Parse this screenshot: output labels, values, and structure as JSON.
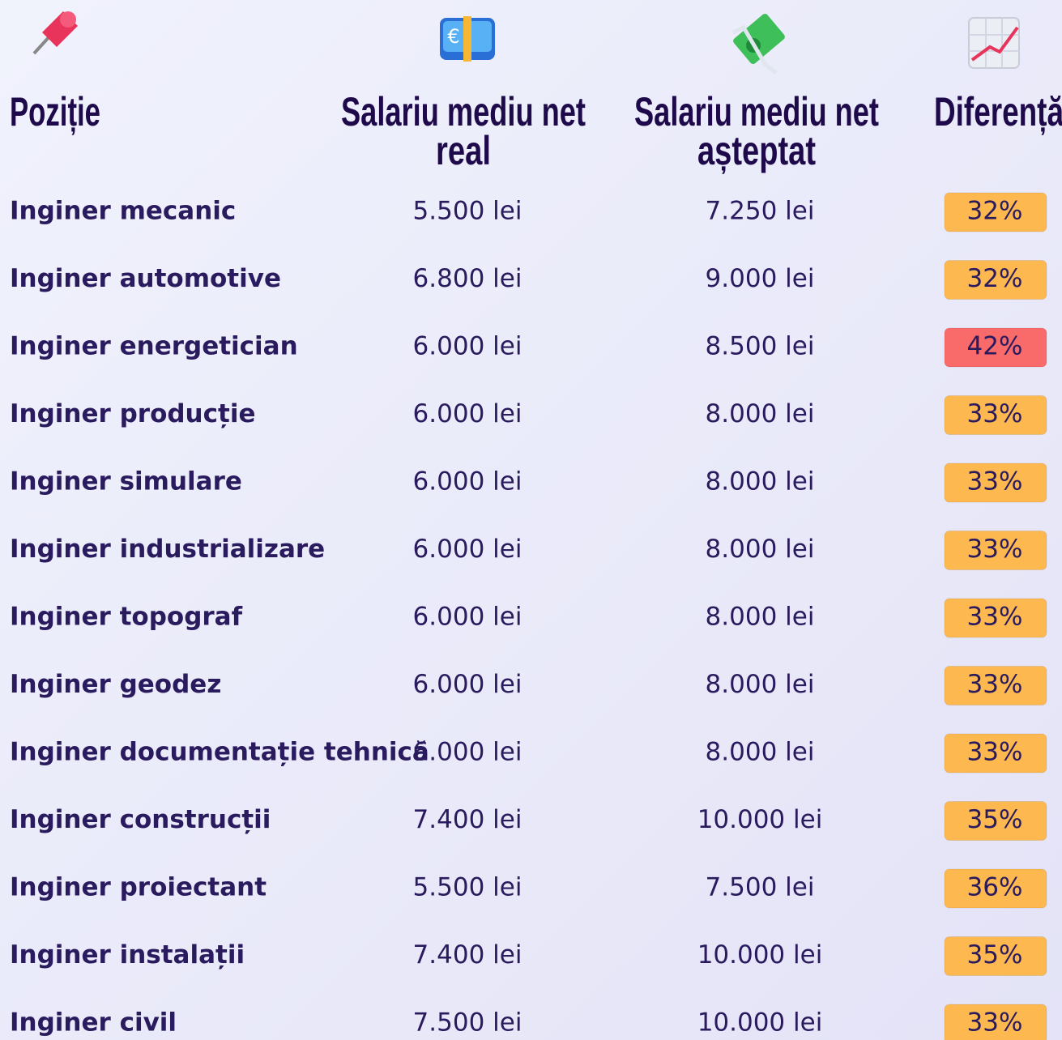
{
  "header": {
    "columns": [
      [
        "Poziție"
      ],
      [
        "Salariu mediu net",
        "real"
      ],
      [
        "Salariu mediu net",
        "așteptat"
      ],
      [
        "Diferență"
      ]
    ]
  },
  "table": {
    "rows": [
      {
        "position": "Inginer mecanic",
        "real": "5.500 lei",
        "expected": "7.250 lei",
        "difference": "32%",
        "color": "#fdb84f"
      },
      {
        "position": "Inginer automotive",
        "real": "6.800 lei",
        "expected": "9.000 lei",
        "difference": "32%",
        "color": "#fdb84f"
      },
      {
        "position": "Inginer energetician",
        "real": "6.000 lei",
        "expected": "8.500 lei",
        "difference": "42%",
        "color": "#f96a6a"
      },
      {
        "position": "Inginer producție",
        "real": "6.000 lei",
        "expected": "8.000 lei",
        "difference": "33%",
        "color": "#fdb84f"
      },
      {
        "position": "Inginer simulare",
        "real": "6.000 lei",
        "expected": "8.000 lei",
        "difference": "33%",
        "color": "#fdb84f"
      },
      {
        "position": "Inginer industrializare",
        "real": "6.000 lei",
        "expected": "8.000 lei",
        "difference": "33%",
        "color": "#fdb84f"
      },
      {
        "position": "Inginer topograf",
        "real": "6.000 lei",
        "expected": "8.000 lei",
        "difference": "33%",
        "color": "#fdb84f"
      },
      {
        "position": "Inginer geodez",
        "real": "6.000 lei",
        "expected": "8.000 lei",
        "difference": "33%",
        "color": "#fdb84f"
      },
      {
        "position": "Inginer documentație tehnică",
        "real": "6.000 lei",
        "expected": "8.000 lei",
        "difference": "33%",
        "color": "#fdb84f"
      },
      {
        "position": "Inginer construcții",
        "real": "7.400 lei",
        "expected": "10.000 lei",
        "difference": "35%",
        "color": "#fdb84f"
      },
      {
        "position": "Inginer proiectant",
        "real": "5.500 lei",
        "expected": "7.500 lei",
        "difference": "36%",
        "color": "#fdb84f"
      },
      {
        "position": "Inginer instalații",
        "real": "7.400 lei",
        "expected": "10.000 lei",
        "difference": "35%",
        "color": "#fdb84f"
      },
      {
        "position": "Inginer civil",
        "real": "7.500 lei",
        "expected": "10.000 lei",
        "difference": "33%",
        "color": "#fdb84f"
      }
    ]
  }
}
